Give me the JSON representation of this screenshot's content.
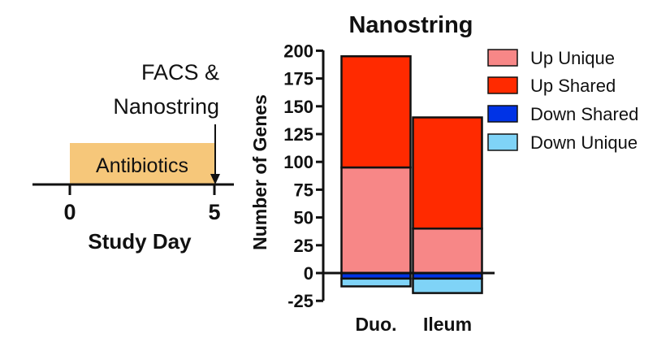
{
  "timeline": {
    "event_label_line1": "FACS &",
    "event_label_line2": "Nanostring",
    "treatment_label": "Antibiotics",
    "tick_start": "0",
    "tick_end": "5",
    "axis_label": "Study Day",
    "treatment_color": "#F6C77A"
  },
  "chart_data": {
    "type": "bar",
    "stacked": true,
    "title": "Nanostring",
    "xlabel": "",
    "ylabel": "Number of Genes",
    "ylim": [
      -25,
      200
    ],
    "yticks": [
      "200",
      "175",
      "150",
      "125",
      "100",
      "75",
      "50",
      "25",
      "0",
      "-25"
    ],
    "categories": [
      "Duo.",
      "Ileum"
    ],
    "series": [
      {
        "name": "Up Unique",
        "color": "#F78787",
        "values": [
          95,
          40
        ]
      },
      {
        "name": "Up Shared",
        "color": "#FF2A00",
        "values": [
          100,
          100
        ]
      },
      {
        "name": "Down Shared",
        "color": "#0033E6",
        "values": [
          -5,
          -5
        ]
      },
      {
        "name": "Down Unique",
        "color": "#7FD3F7",
        "values": [
          -7,
          -13
        ]
      }
    ],
    "legend_position": "right",
    "grid": false
  }
}
